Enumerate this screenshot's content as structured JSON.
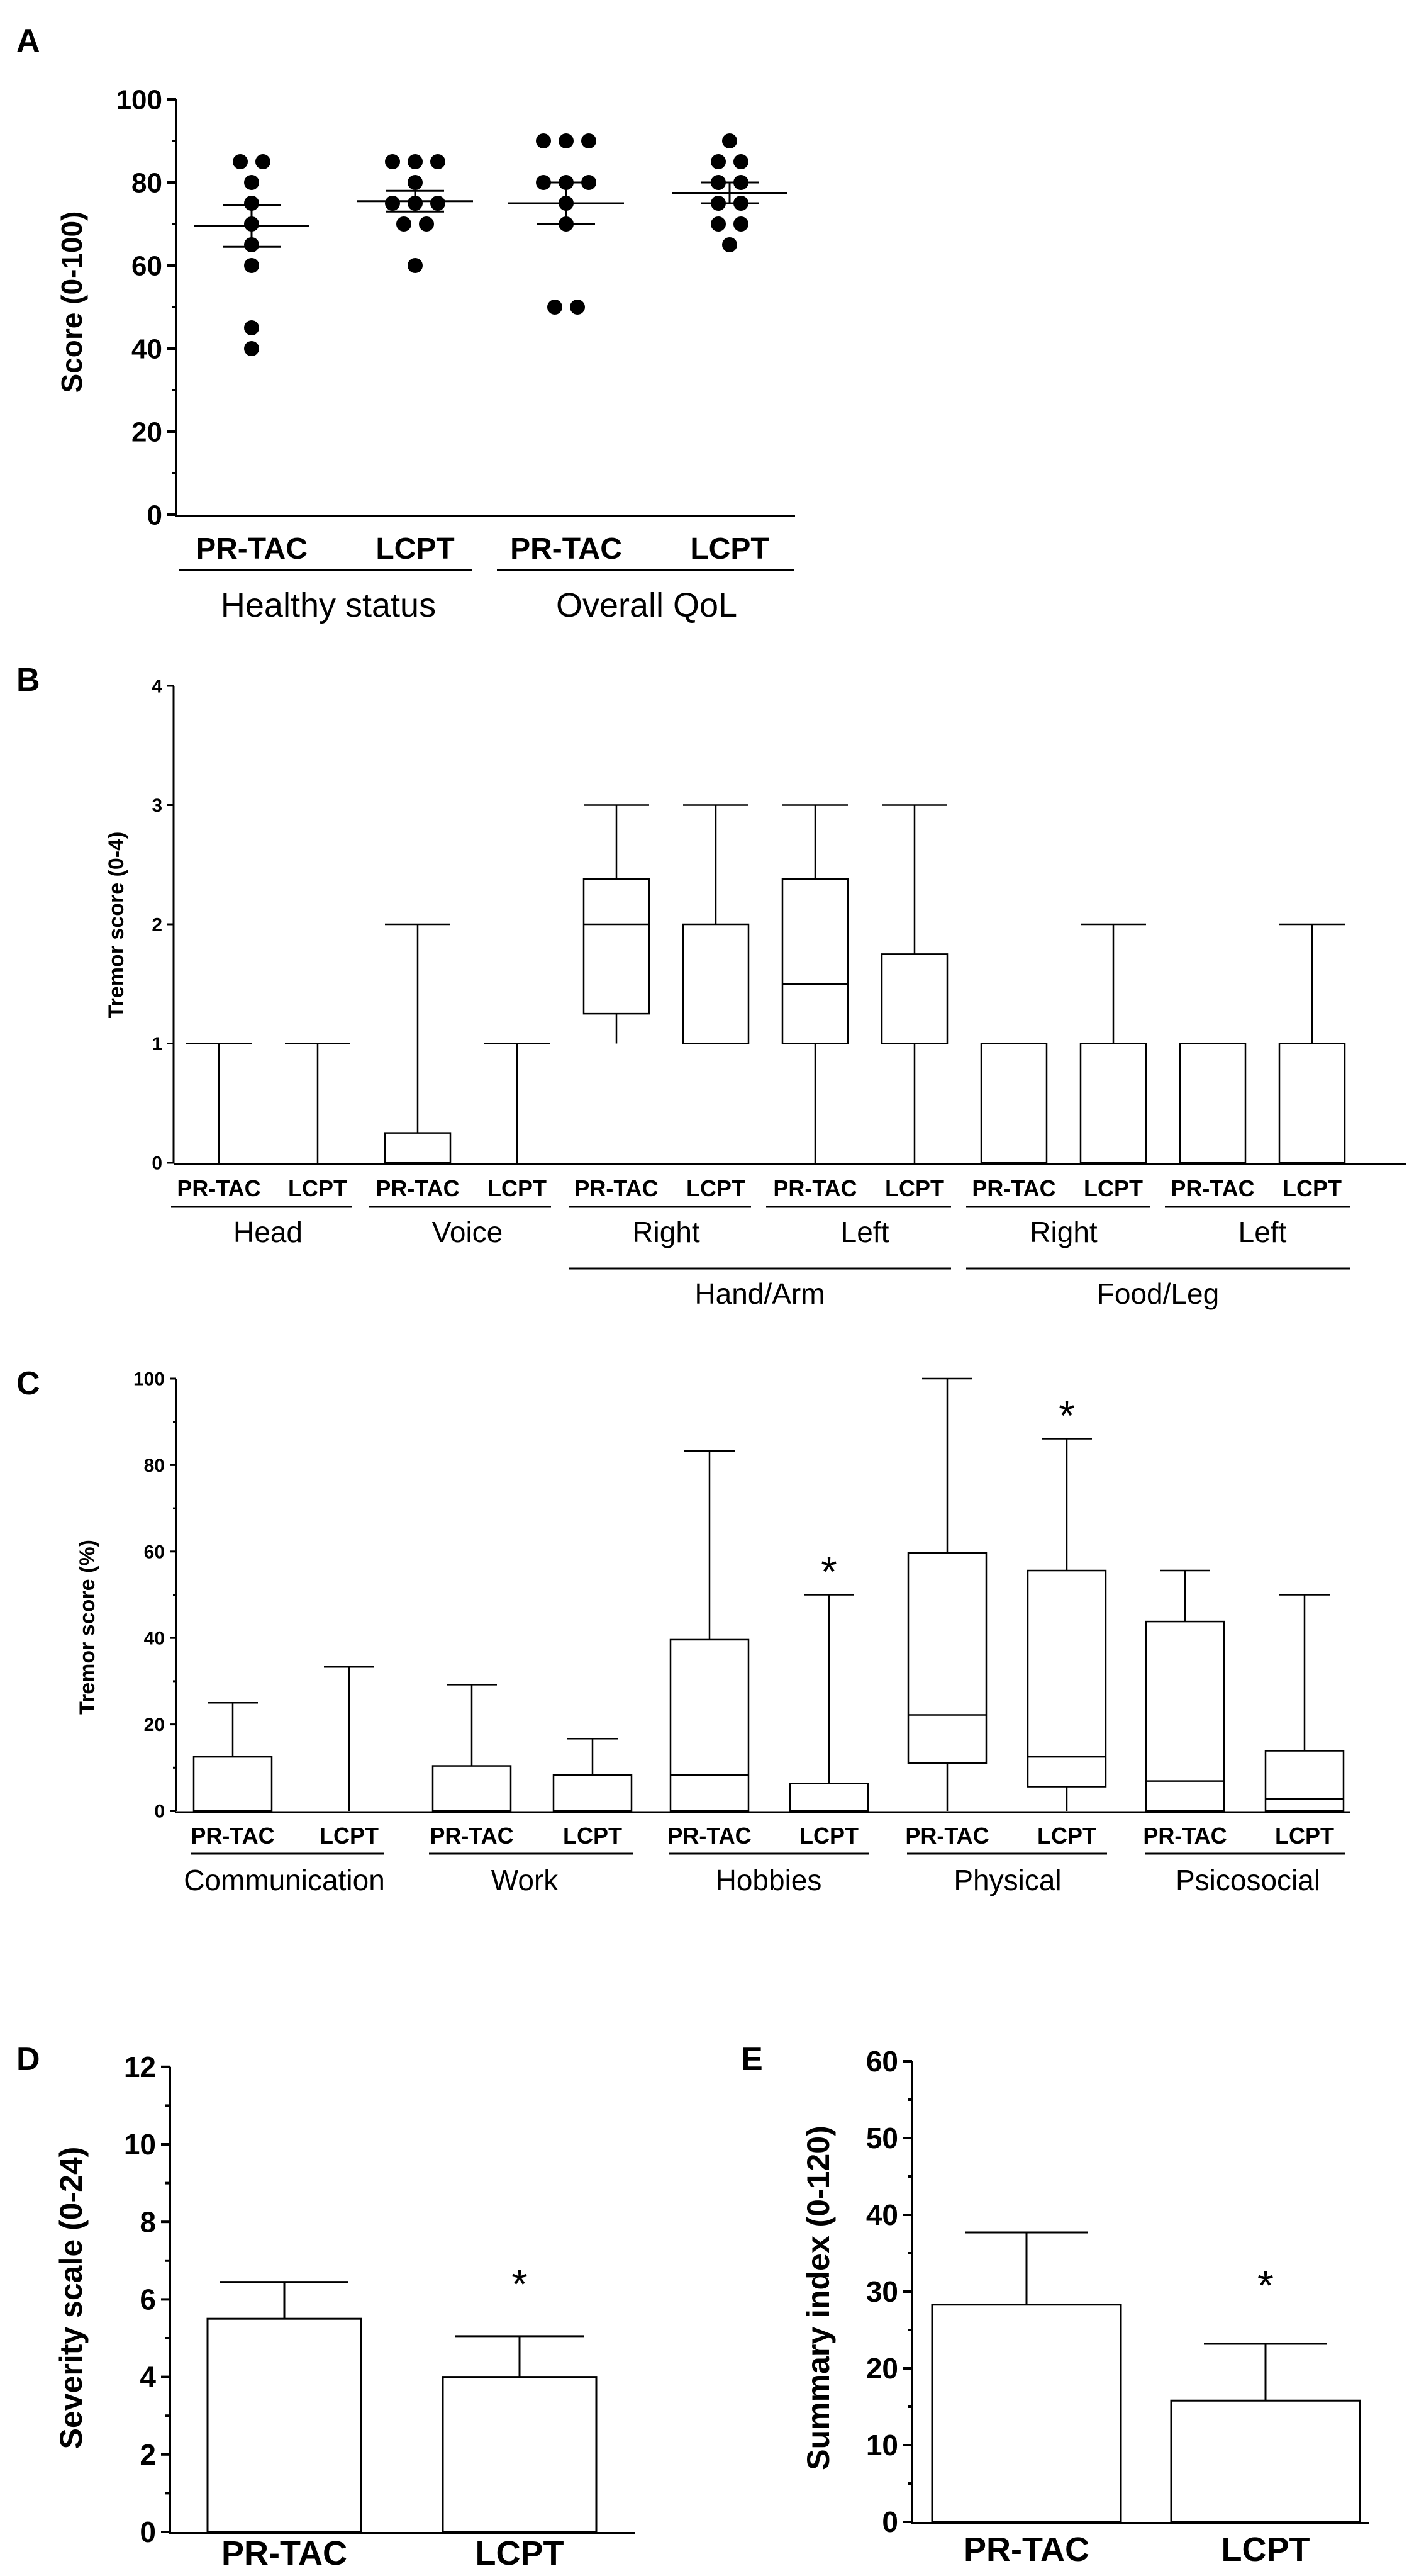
{
  "chart_data": [
    {
      "panel": "A",
      "type": "scatter",
      "ylabel": "Score (0-100)",
      "ylim": [
        0,
        100
      ],
      "yticks": [
        0,
        20,
        40,
        60,
        80,
        100
      ],
      "categories": [
        "PR-TAC",
        "LCPT",
        "PR-TAC",
        "LCPT"
      ],
      "groups": [
        {
          "label": "Healthy status",
          "span": [
            0,
            1
          ]
        },
        {
          "label": "Overall QoL",
          "span": [
            2,
            3
          ]
        }
      ],
      "series": [
        {
          "name": "Healthy status PR-TAC",
          "values": [
            85,
            85,
            80,
            75,
            70,
            65,
            60,
            45,
            40
          ],
          "mean": 69.5,
          "sem_low": 64.5,
          "sem_high": 74.5
        },
        {
          "name": "Healthy status LCPT",
          "values": [
            85,
            85,
            85,
            80,
            75,
            75,
            75,
            70,
            70,
            60
          ],
          "mean": 75.5,
          "sem_low": 73,
          "sem_high": 78
        },
        {
          "name": "Overall QoL PR-TAC",
          "values": [
            90,
            90,
            90,
            80,
            80,
            80,
            75,
            70,
            50,
            50
          ],
          "mean": 75,
          "sem_low": 70,
          "sem_high": 80
        },
        {
          "name": "Overall QoL LCPT",
          "values": [
            90,
            85,
            85,
            80,
            80,
            75,
            75,
            70,
            70,
            65
          ],
          "mean": 77.5,
          "sem_low": 75,
          "sem_high": 80
        }
      ]
    },
    {
      "panel": "B",
      "type": "box",
      "ylabel": "Tremor score (0-4)",
      "ylim": [
        0,
        4
      ],
      "yticks": [
        0,
        1,
        2,
        3,
        4
      ],
      "categories": [
        "PR-TAC",
        "LCPT",
        "PR-TAC",
        "LCPT",
        "PR-TAC",
        "LCPT",
        "PR-TAC",
        "LCPT",
        "PR-TAC",
        "LCPT",
        "PR-TAC",
        "LCPT"
      ],
      "groups": [
        {
          "label": "Head",
          "span": [
            0,
            1
          ]
        },
        {
          "label": "Voice",
          "span": [
            2,
            3
          ]
        },
        {
          "label": "Right",
          "span": [
            4,
            5
          ]
        },
        {
          "label": "Left",
          "span": [
            6,
            7
          ]
        },
        {
          "label": "Right",
          "span": [
            8,
            9
          ]
        },
        {
          "label": "Left",
          "span": [
            10,
            11
          ]
        }
      ],
      "supergroups": [
        {
          "label": "Hand/Arm",
          "span": [
            4,
            7
          ]
        },
        {
          "label": "Food/Leg",
          "span": [
            8,
            11
          ]
        }
      ],
      "boxes": [
        {
          "min": 0,
          "q1": 0,
          "median": 0,
          "q3": 0,
          "max": 1
        },
        {
          "min": 0,
          "q1": 0,
          "median": 0,
          "q3": 0,
          "max": 1
        },
        {
          "min": 0,
          "q1": 0,
          "median": 0,
          "q3": 0.25,
          "max": 2
        },
        {
          "min": 0,
          "q1": 0,
          "median": 0,
          "q3": 0,
          "max": 1
        },
        {
          "min": 1,
          "q1": 1.25,
          "median": 2,
          "q3": 2.38,
          "max": 3
        },
        {
          "min": 1,
          "q1": 1,
          "median": 2,
          "q3": 2,
          "max": 3
        },
        {
          "min": 0,
          "q1": 1,
          "median": 1.5,
          "q3": 2.38,
          "max": 3
        },
        {
          "min": 0,
          "q1": 1,
          "median": 1,
          "q3": 1.75,
          "max": 3
        },
        {
          "min": 0,
          "q1": 0,
          "median": 1,
          "q3": 1,
          "max": 1
        },
        {
          "min": 0,
          "q1": 0,
          "median": 1,
          "q3": 1,
          "max": 2
        },
        {
          "min": 0,
          "q1": 0,
          "median": 1,
          "q3": 1,
          "max": 1
        },
        {
          "min": 0,
          "q1": 0,
          "median": 1,
          "q3": 1,
          "max": 2
        }
      ]
    },
    {
      "panel": "C",
      "type": "box",
      "ylabel": "Tremor score (%)",
      "ylim": [
        0,
        100
      ],
      "yticks": [
        0,
        20,
        40,
        60,
        80,
        100
      ],
      "categories": [
        "PR-TAC",
        "LCPT",
        "PR-TAC",
        "LCPT",
        "PR-TAC",
        "LCPT",
        "PR-TAC",
        "LCPT",
        "PR-TAC",
        "LCPT"
      ],
      "groups": [
        {
          "label": "Communication",
          "span": [
            0,
            1
          ]
        },
        {
          "label": "Work",
          "span": [
            2,
            3
          ]
        },
        {
          "label": "Hobbies",
          "span": [
            4,
            5
          ]
        },
        {
          "label": "Physical",
          "span": [
            6,
            7
          ]
        },
        {
          "label": "Psicosocial",
          "span": [
            8,
            9
          ]
        }
      ],
      "boxes": [
        {
          "min": 0,
          "q1": 0,
          "median": 0,
          "q3": 12.5,
          "max": 25
        },
        {
          "min": 0,
          "q1": 0,
          "median": 0,
          "q3": 0,
          "max": 33.3
        },
        {
          "min": 0,
          "q1": 0,
          "median": 0,
          "q3": 10.4,
          "max": 29.2
        },
        {
          "min": 0,
          "q1": 0,
          "median": 0,
          "q3": 8.3,
          "max": 16.7
        },
        {
          "min": 0,
          "q1": 0,
          "median": 8.3,
          "q3": 39.6,
          "max": 83.3
        },
        {
          "min": 0,
          "q1": 0,
          "median": 0,
          "q3": 6.3,
          "max": 50
        },
        {
          "min": 0,
          "q1": 11.1,
          "median": 22.2,
          "q3": 59.7,
          "max": 100
        },
        {
          "min": 0,
          "q1": 5.6,
          "median": 12.5,
          "q3": 55.6,
          "max": 86.1
        },
        {
          "min": 0,
          "q1": 0,
          "median": 6.9,
          "q3": 43.8,
          "max": 55.6
        },
        {
          "min": 0,
          "q1": 0,
          "median": 2.8,
          "q3": 13.9,
          "max": 50
        }
      ],
      "significance": [
        {
          "index": 5,
          "y": 50,
          "label": "*"
        },
        {
          "index": 7,
          "y": 86.1,
          "label": "*"
        }
      ]
    },
    {
      "panel": "D",
      "type": "bar",
      "ylabel": "Severity scale (0-24)",
      "ylim": [
        0,
        12
      ],
      "yticks": [
        0,
        2,
        4,
        6,
        8,
        10,
        12
      ],
      "categories": [
        "PR-TAC",
        "LCPT"
      ],
      "values": [
        5.5,
        4
      ],
      "errors": [
        0.95,
        1.05
      ],
      "significance": [
        {
          "index": 1,
          "label": "*"
        }
      ]
    },
    {
      "panel": "E",
      "type": "bar",
      "ylabel": "Summary index (0-120)",
      "ylim": [
        0,
        60
      ],
      "yticks": [
        0,
        10,
        20,
        30,
        40,
        50,
        60
      ],
      "categories": [
        "PR-TAC",
        "LCPT"
      ],
      "values": [
        28.3,
        15.8
      ],
      "errors": [
        9.4,
        7.4
      ],
      "significance": [
        {
          "index": 1,
          "label": "*"
        }
      ]
    }
  ]
}
